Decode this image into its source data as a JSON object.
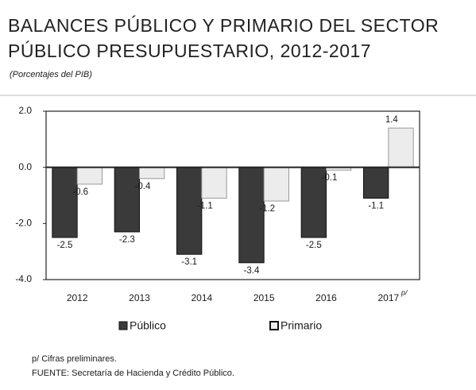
{
  "chart_data": {
    "type": "bar",
    "title_lines": [
      "BALANCES PÚBLICO Y PRIMARIO DEL SECTOR",
      "PÚBLICO PRESUPUESTARIO, 2012-2017"
    ],
    "subtitle": "(Porcentajes del PIB)",
    "categories": [
      "2012",
      "2013",
      "2014",
      "2015",
      "2016",
      "2017"
    ],
    "category_superscripts": [
      null,
      null,
      null,
      null,
      null,
      "p/"
    ],
    "series": [
      {
        "name": "Público",
        "color": "#3a3a3a",
        "values": [
          -2.5,
          -2.3,
          -3.1,
          -3.4,
          -2.5,
          -1.1
        ]
      },
      {
        "name": "Primario",
        "color": "#ececec",
        "values": [
          -0.6,
          -0.4,
          -1.1,
          -1.2,
          -0.1,
          1.4
        ]
      }
    ],
    "ylim": [
      -4,
      2
    ],
    "yticks": [
      {
        "value": 2,
        "label": "2.0"
      },
      {
        "value": 0,
        "label": "0.0"
      },
      {
        "value": -2,
        "label": "-2.0"
      },
      {
        "value": -4,
        "label": "-4.0"
      }
    ],
    "legend": "bottom",
    "footnotes": [
      "p/ Cifras preliminares.",
      "FUENTE: Secretaría de Hacienda y Crédito Público."
    ]
  }
}
